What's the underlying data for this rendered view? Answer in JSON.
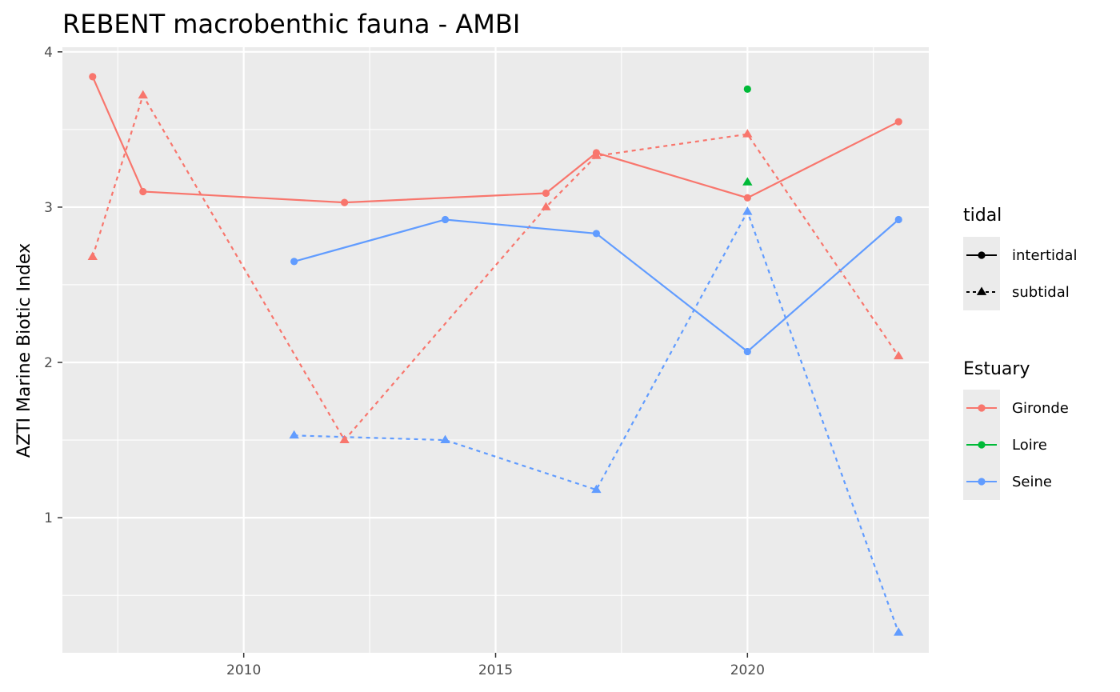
{
  "chart_data": {
    "type": "line",
    "title": "REBENT macrobenthic fauna - AMBI",
    "xlabel": "",
    "ylabel": "AZTI Marine Biotic Index",
    "xlim": [
      2006.4,
      2023.6
    ],
    "ylim": [
      0.13,
      4.03
    ],
    "x_ticks": [
      2010,
      2015,
      2020
    ],
    "y_ticks": [
      1,
      2,
      3,
      4
    ],
    "x_tick_labels": [
      "2010",
      "2015",
      "2020"
    ],
    "y_tick_labels": [
      "1",
      "2",
      "3",
      "4"
    ],
    "grid": true,
    "legend_position": "right",
    "legends": {
      "tidal": {
        "title": "tidal",
        "entries": [
          {
            "label": "intertidal",
            "linetype": "solid",
            "shape": "circle"
          },
          {
            "label": "subtidal",
            "linetype": "dashed",
            "shape": "triangle"
          }
        ]
      },
      "estuary": {
        "title": "Estuary",
        "entries": [
          {
            "label": "Gironde",
            "color": "#F8766D"
          },
          {
            "label": "Loire",
            "color": "#00BA38"
          },
          {
            "label": "Seine",
            "color": "#619CFF"
          }
        ]
      }
    },
    "series": [
      {
        "estuary": "Gironde",
        "tidal": "intertidal",
        "color": "#F8766D",
        "linetype": "solid",
        "shape": "circle",
        "points": [
          [
            2007,
            3.84
          ],
          [
            2008,
            3.1
          ],
          [
            2012,
            3.03
          ],
          [
            2016,
            3.09
          ],
          [
            2017,
            3.35
          ],
          [
            2020,
            3.06
          ],
          [
            2023,
            3.55
          ]
        ]
      },
      {
        "estuary": "Gironde",
        "tidal": "subtidal",
        "color": "#F8766D",
        "linetype": "dashed",
        "shape": "triangle",
        "points": [
          [
            2007,
            2.68
          ],
          [
            2008,
            3.72
          ],
          [
            2012,
            1.5
          ],
          [
            2016,
            3.0
          ],
          [
            2017,
            3.33
          ],
          [
            2020,
            3.47
          ],
          [
            2023,
            2.04
          ]
        ]
      },
      {
        "estuary": "Loire",
        "tidal": "intertidal",
        "color": "#00BA38",
        "linetype": "solid",
        "shape": "circle",
        "points": [
          [
            2020,
            3.76
          ]
        ]
      },
      {
        "estuary": "Loire",
        "tidal": "subtidal",
        "color": "#00BA38",
        "linetype": "dashed",
        "shape": "triangle",
        "points": [
          [
            2020,
            3.16
          ]
        ]
      },
      {
        "estuary": "Seine",
        "tidal": "intertidal",
        "color": "#619CFF",
        "linetype": "solid",
        "shape": "circle",
        "points": [
          [
            2011,
            2.65
          ],
          [
            2014,
            2.92
          ],
          [
            2017,
            2.83
          ],
          [
            2020,
            2.07
          ],
          [
            2023,
            2.92
          ]
        ]
      },
      {
        "estuary": "Seine",
        "tidal": "subtidal",
        "color": "#619CFF",
        "linetype": "dashed",
        "shape": "triangle",
        "points": [
          [
            2011,
            1.53
          ],
          [
            2014,
            1.5
          ],
          [
            2017,
            1.18
          ],
          [
            2020,
            2.97
          ],
          [
            2023,
            0.26
          ]
        ]
      }
    ]
  }
}
